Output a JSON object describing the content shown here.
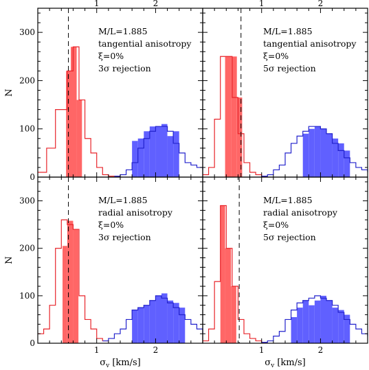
{
  "chart_data": [
    {
      "type": "histogram",
      "position": "top-left",
      "annotations": [
        "M/L=1.885",
        "tangential anisotropy",
        "ξ=0%",
        "3σ rejection"
      ],
      "xlim": [
        0,
        2.8
      ],
      "ylim": [
        0,
        350
      ],
      "x_ticks_top": [
        "1",
        "2"
      ],
      "x_ticks_bottom": [],
      "y_ticks": [
        "0",
        "100",
        "200",
        "300"
      ],
      "ylabel": "N",
      "xlabel": "",
      "dashed_line_x": 0.52,
      "red_outline": [
        [
          0.0,
          10
        ],
        [
          0.15,
          60
        ],
        [
          0.3,
          140
        ],
        [
          0.5,
          220
        ],
        [
          0.6,
          270
        ],
        [
          0.7,
          160
        ],
        [
          0.8,
          80
        ],
        [
          0.9,
          50
        ],
        [
          1.0,
          20
        ],
        [
          1.1,
          5
        ],
        [
          1.2,
          2
        ],
        [
          1.3,
          2
        ]
      ],
      "red_filled": [
        [
          0.48,
          220
        ],
        [
          0.56,
          270
        ],
        [
          0.66,
          160
        ]
      ],
      "blue_outline": [
        [
          1.3,
          2
        ],
        [
          1.4,
          5
        ],
        [
          1.5,
          15
        ],
        [
          1.6,
          30
        ],
        [
          1.7,
          60
        ],
        [
          1.8,
          80
        ],
        [
          1.9,
          95
        ],
        [
          2.0,
          105
        ],
        [
          2.1,
          105
        ],
        [
          2.2,
          95
        ],
        [
          2.3,
          70
        ],
        [
          2.4,
          50
        ],
        [
          2.5,
          30
        ],
        [
          2.6,
          25
        ],
        [
          2.7,
          20
        ],
        [
          2.8,
          15
        ]
      ],
      "blue_filled": [
        [
          1.6,
          75
        ],
        [
          1.7,
          80
        ],
        [
          1.8,
          95
        ],
        [
          1.9,
          105
        ],
        [
          2.0,
          105
        ],
        [
          2.1,
          110
        ],
        [
          2.2,
          85
        ],
        [
          2.3,
          95
        ]
      ]
    },
    {
      "type": "histogram",
      "position": "top-right",
      "annotations": [
        "M/L=1.885",
        "tangential anisotropy",
        "ξ=0%",
        "5σ rejection"
      ],
      "xlim": [
        0,
        2.8
      ],
      "ylim": [
        0,
        350
      ],
      "x_ticks_top": [
        "1",
        "2"
      ],
      "x_ticks_bottom": [],
      "y_ticks": [],
      "ylabel": "",
      "xlabel": "",
      "dashed_line_x": 0.65,
      "red_outline": [
        [
          0.0,
          5
        ],
        [
          0.1,
          20
        ],
        [
          0.2,
          120
        ],
        [
          0.3,
          250
        ],
        [
          0.4,
          250
        ],
        [
          0.5,
          165
        ],
        [
          0.6,
          90
        ],
        [
          0.7,
          30
        ],
        [
          0.8,
          10
        ],
        [
          0.9,
          5
        ],
        [
          1.0,
          2
        ]
      ],
      "red_filled": [
        [
          0.38,
          250
        ],
        [
          0.48,
          250
        ],
        [
          0.58,
          165
        ]
      ],
      "blue_outline": [
        [
          1.0,
          2
        ],
        [
          1.1,
          5
        ],
        [
          1.2,
          15
        ],
        [
          1.3,
          25
        ],
        [
          1.4,
          50
        ],
        [
          1.5,
          70
        ],
        [
          1.6,
          85
        ],
        [
          1.7,
          95
        ],
        [
          1.8,
          105
        ],
        [
          1.9,
          105
        ],
        [
          2.0,
          100
        ],
        [
          2.1,
          90
        ],
        [
          2.2,
          70
        ],
        [
          2.3,
          55
        ],
        [
          2.4,
          40
        ],
        [
          2.5,
          30
        ],
        [
          2.6,
          20
        ],
        [
          2.7,
          15
        ],
        [
          2.8,
          10
        ]
      ],
      "blue_filled": [
        [
          1.7,
          90
        ],
        [
          1.8,
          100
        ],
        [
          1.9,
          105
        ],
        [
          2.0,
          100
        ],
        [
          2.1,
          90
        ],
        [
          2.2,
          80
        ],
        [
          2.3,
          70
        ],
        [
          2.4,
          55
        ]
      ]
    },
    {
      "type": "histogram",
      "position": "bottom-left",
      "annotations": [
        "M/L=1.885",
        "radial anisotropy",
        "ξ=0%",
        "3σ rejection"
      ],
      "xlim": [
        0,
        2.8
      ],
      "ylim": [
        0,
        350
      ],
      "x_ticks_top": [],
      "x_ticks_bottom": [
        "1",
        "2"
      ],
      "y_ticks": [
        "0",
        "100",
        "200",
        "300"
      ],
      "ylabel": "N",
      "xlabel": "σv [km/s]",
      "dashed_line_x": 0.52,
      "red_outline": [
        [
          0.0,
          20
        ],
        [
          0.1,
          30
        ],
        [
          0.2,
          80
        ],
        [
          0.3,
          200
        ],
        [
          0.4,
          260
        ],
        [
          0.5,
          250
        ],
        [
          0.6,
          240
        ],
        [
          0.7,
          100
        ],
        [
          0.8,
          50
        ],
        [
          0.9,
          30
        ],
        [
          1.0,
          10
        ],
        [
          1.1,
          5
        ]
      ],
      "red_filled": [
        [
          0.42,
          205
        ],
        [
          0.5,
          258
        ],
        [
          0.6,
          240
        ]
      ],
      "blue_outline": [
        [
          1.1,
          5
        ],
        [
          1.2,
          10
        ],
        [
          1.3,
          20
        ],
        [
          1.4,
          30
        ],
        [
          1.5,
          50
        ],
        [
          1.6,
          70
        ],
        [
          1.7,
          75
        ],
        [
          1.8,
          80
        ],
        [
          1.9,
          90
        ],
        [
          2.0,
          100
        ],
        [
          2.1,
          95
        ],
        [
          2.2,
          85
        ],
        [
          2.3,
          75
        ],
        [
          2.4,
          60
        ],
        [
          2.5,
          50
        ],
        [
          2.6,
          40
        ],
        [
          2.7,
          30
        ],
        [
          2.8,
          20
        ]
      ],
      "blue_filled": [
        [
          1.6,
          70
        ],
        [
          1.7,
          75
        ],
        [
          1.8,
          80
        ],
        [
          1.9,
          90
        ],
        [
          2.0,
          100
        ],
        [
          2.1,
          105
        ],
        [
          2.2,
          90
        ],
        [
          2.3,
          85
        ],
        [
          2.4,
          75
        ]
      ]
    },
    {
      "type": "histogram",
      "position": "bottom-right",
      "annotations": [
        "M/L=1.885",
        "radial anisotropy",
        "ξ=0%",
        "5σ rejection"
      ],
      "xlim": [
        0,
        2.8
      ],
      "ylim": [
        0,
        350
      ],
      "x_ticks_top": [],
      "x_ticks_bottom": [
        "1",
        "2"
      ],
      "y_ticks": [],
      "ylabel": "",
      "xlabel": "σv [km/s]",
      "dashed_line_x": 0.62,
      "red_outline": [
        [
          0.0,
          5
        ],
        [
          0.1,
          30
        ],
        [
          0.2,
          130
        ],
        [
          0.3,
          290
        ],
        [
          0.4,
          200
        ],
        [
          0.5,
          120
        ],
        [
          0.6,
          50
        ],
        [
          0.7,
          20
        ],
        [
          0.8,
          10
        ],
        [
          0.9,
          5
        ],
        [
          1.0,
          2
        ]
      ],
      "red_filled": [
        [
          0.3,
          290
        ],
        [
          0.38,
          200
        ],
        [
          0.48,
          120
        ]
      ],
      "blue_outline": [
        [
          1.0,
          2
        ],
        [
          1.1,
          5
        ],
        [
          1.2,
          15
        ],
        [
          1.3,
          25
        ],
        [
          1.4,
          50
        ],
        [
          1.5,
          70
        ],
        [
          1.6,
          85
        ],
        [
          1.7,
          90
        ],
        [
          1.8,
          95
        ],
        [
          1.9,
          100
        ],
        [
          2.0,
          95
        ],
        [
          2.1,
          90
        ],
        [
          2.2,
          80
        ],
        [
          2.3,
          65
        ],
        [
          2.4,
          50
        ],
        [
          2.5,
          40
        ],
        [
          2.6,
          30
        ],
        [
          2.7,
          20
        ],
        [
          2.8,
          15
        ]
      ],
      "blue_filled": [
        [
          1.5,
          55
        ],
        [
          1.6,
          75
        ],
        [
          1.7,
          90
        ],
        [
          1.8,
          80
        ],
        [
          1.9,
          90
        ],
        [
          2.0,
          100
        ],
        [
          2.1,
          90
        ],
        [
          2.2,
          75
        ],
        [
          2.3,
          70
        ],
        [
          2.4,
          60
        ]
      ]
    }
  ]
}
